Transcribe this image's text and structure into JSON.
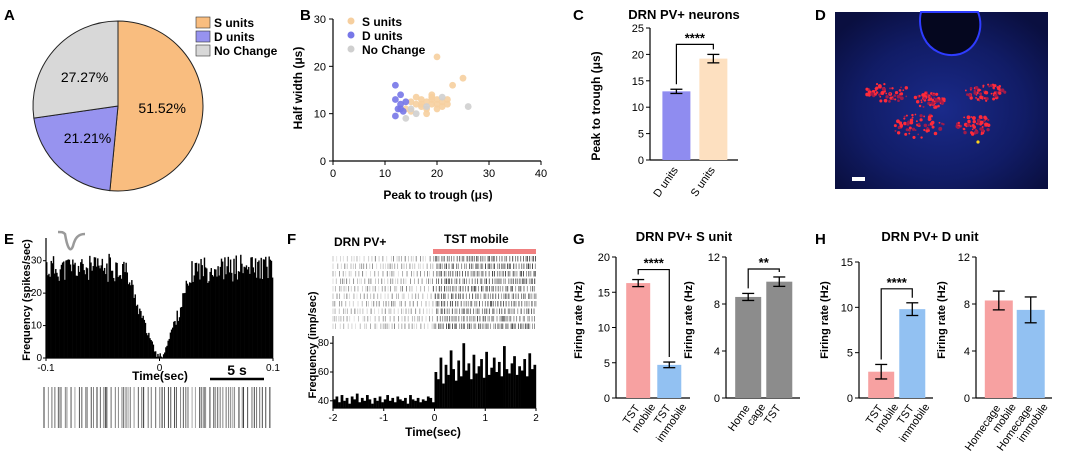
{
  "colors": {
    "s_units": "#f9bd7f",
    "d_units": "#9793ef",
    "no_change": "#d8d8d8",
    "s_light": "#fde0c0",
    "d_light": "#8f8cf0",
    "mobile_red": "#f7a1a1",
    "immobile_blue": "#92c1f2",
    "gray_bar": "#8c8c8c",
    "tst_bar": "#f4a3a3",
    "scatter_s": "#f6cf9f",
    "scatter_d": "#7777e8",
    "scatter_nc": "#cfcfcf"
  },
  "panel_labels": [
    "A",
    "B",
    "C",
    "D",
    "E",
    "F",
    "G",
    "H"
  ],
  "chart_data": [
    {
      "id": "A",
      "type": "pie",
      "legend": [
        "S units",
        "D units",
        "No Change"
      ],
      "slices": [
        {
          "name": "S units",
          "value": 51.52,
          "label": "51.52%"
        },
        {
          "name": "D units",
          "value": 21.21,
          "label": "21.21%"
        },
        {
          "name": "No Change",
          "value": 27.27,
          "label": "27.27%"
        }
      ]
    },
    {
      "id": "B",
      "type": "scatter",
      "xlabel": "Peak to trough (μs)",
      "ylabel": "Half width (μs)",
      "xlim": [
        0,
        40
      ],
      "ylim": [
        0,
        30
      ],
      "xticks": [
        "0",
        "10",
        "20",
        "30",
        "40"
      ],
      "yticks": [
        "0",
        "10",
        "20",
        "30"
      ],
      "legend": [
        "S units",
        "D units",
        "No Change"
      ],
      "series": [
        {
          "name": "S units",
          "points": [
            [
              14,
              11
            ],
            [
              15,
              10.5
            ],
            [
              16,
              12
            ],
            [
              17,
              11.5
            ],
            [
              17,
              13
            ],
            [
              18,
              12.5
            ],
            [
              18,
              11
            ],
            [
              19,
              12
            ],
            [
              19,
              13.5
            ],
            [
              20,
              12
            ],
            [
              20,
              13
            ],
            [
              21,
              12.5
            ],
            [
              21,
              11.5
            ],
            [
              22,
              13
            ],
            [
              23,
              16
            ],
            [
              25,
              17.5
            ],
            [
              20,
              22
            ],
            [
              19,
              13
            ],
            [
              15,
              12.5
            ],
            [
              16,
              13.5
            ],
            [
              18,
              10
            ],
            [
              20,
              11
            ],
            [
              22,
              12
            ],
            [
              17,
              12
            ],
            [
              19,
              14
            ]
          ]
        },
        {
          "name": "D units",
          "points": [
            [
              12,
              16
            ],
            [
              12,
              13
            ],
            [
              13,
              14
            ],
            [
              13,
              12
            ],
            [
              12.5,
              11
            ],
            [
              13.5,
              10.5
            ],
            [
              12,
              9.5
            ],
            [
              14,
              12.5
            ],
            [
              13,
              11
            ]
          ]
        },
        {
          "name": "No Change",
          "points": [
            [
              14,
              9
            ],
            [
              16,
              10
            ],
            [
              18,
              11.5
            ],
            [
              21,
              13.5
            ],
            [
              26,
              11.5
            ],
            [
              15,
              11
            ]
          ]
        }
      ]
    },
    {
      "id": "C",
      "type": "bar",
      "title": "DRN PV+ neurons",
      "ylabel": "Peak to trough (μs)",
      "categories": [
        "D units",
        "S units"
      ],
      "values": [
        13.0,
        19.2
      ],
      "errors": [
        0.4,
        0.8
      ],
      "ylim": [
        0,
        25
      ],
      "yticks": [
        "0",
        "5",
        "10",
        "15",
        "20",
        "25"
      ],
      "significance": "****"
    },
    {
      "id": "E",
      "type": "histogram",
      "ylabel": "Frequency (spikes/sec)",
      "xlabel": "Time(sec)",
      "xlim": [
        -0.1,
        0.1
      ],
      "xticks": [
        "-0.1",
        "0",
        "0.1"
      ],
      "ylim": [
        0,
        37
      ],
      "yticks": [
        "0",
        "10",
        "20",
        "30"
      ],
      "scale_bar_label": "5 s",
      "bin_count": 200,
      "baseline_rate": 27,
      "trough_center": 0.0,
      "trough_halfwidth": 0.011
    },
    {
      "id": "F",
      "type": "raster_histogram",
      "title": "DRN PV+",
      "event_label": "TST mobile",
      "ylabel": "Frequency (imp/sec)",
      "xlabel": "Time(sec)",
      "xlim": [
        -2,
        2
      ],
      "xticks": [
        "-2",
        "-1",
        "0",
        "1",
        "2"
      ],
      "ylim": [
        35,
        85
      ],
      "yticks": [
        "40",
        "60",
        "80"
      ],
      "raster_rows": 10,
      "values": [
        41,
        43,
        39,
        44,
        40,
        42,
        38,
        43,
        41,
        45,
        39,
        42,
        40,
        44,
        41,
        38,
        42,
        40,
        43,
        39,
        41,
        44,
        40,
        42,
        39,
        43,
        41,
        40,
        42,
        38,
        44,
        41,
        40,
        42,
        39,
        41,
        40,
        43,
        42,
        39,
        60,
        55,
        70,
        52,
        65,
        58,
        75,
        62,
        54,
        68,
        57,
        80,
        61,
        66,
        55,
        72,
        59,
        64,
        69,
        56,
        74,
        58,
        63,
        70,
        60,
        67,
        57,
        78,
        62,
        59,
        66,
        71,
        58,
        64,
        61,
        69,
        57,
        73,
        62,
        65
      ]
    },
    {
      "id": "G1",
      "type": "bar",
      "title": "DRN PV+ S unit",
      "ylabel": "Firing rate (Hz)",
      "categories": [
        "TST mobile",
        "TST immobile"
      ],
      "values": [
        16.3,
        4.7
      ],
      "errors": [
        0.5,
        0.4
      ],
      "ylim": [
        0,
        20
      ],
      "yticks": [
        "0",
        "5",
        "10",
        "15",
        "20"
      ],
      "significance": "****"
    },
    {
      "id": "G2",
      "type": "bar",
      "ylabel": "Firing rate (Hz)",
      "categories": [
        "Home cage",
        "TST"
      ],
      "values": [
        8.6,
        9.9
      ],
      "errors": [
        0.3,
        0.4
      ],
      "ylim": [
        0,
        12
      ],
      "yticks": [
        "0",
        "4",
        "8",
        "12"
      ],
      "significance": "**"
    },
    {
      "id": "H1",
      "type": "bar",
      "title": "DRN PV+ D unit",
      "ylabel": "Firing rate (Hz)",
      "categories": [
        "TST mobile",
        "TST immobile"
      ],
      "values": [
        2.9,
        9.8
      ],
      "errors": [
        0.8,
        0.7
      ],
      "ylim": [
        0,
        15
      ],
      "yticks": [
        "0",
        "5",
        "10",
        "15"
      ],
      "significance": "****"
    },
    {
      "id": "H2",
      "type": "bar",
      "ylabel": "Firing rate (Hz)",
      "categories": [
        "Homecage mobile",
        "Homecage immobile"
      ],
      "values": [
        8.3,
        7.5
      ],
      "errors": [
        0.8,
        1.1
      ],
      "ylim": [
        0,
        12
      ],
      "yticks": [
        "0",
        "4",
        "8",
        "12"
      ],
      "significance": ""
    }
  ]
}
